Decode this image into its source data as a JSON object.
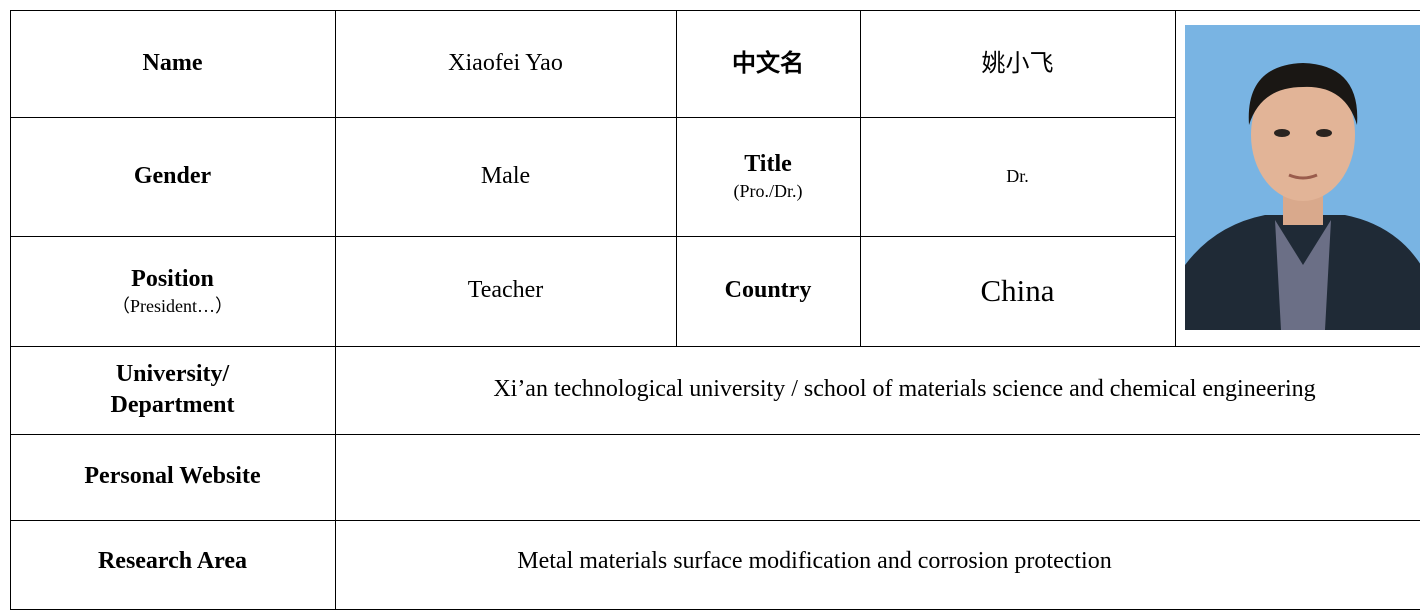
{
  "profile": {
    "name_label": "Name",
    "name": "Xiaofei Yao",
    "chinese_name_label": "中文名",
    "chinese_name": "姚小飞",
    "gender_label": "Gender",
    "gender": "Male",
    "title_label": "Title",
    "title_hint": "(Pro./Dr.)",
    "title": "Dr.",
    "position_label": "Position",
    "position_hint": "（President…）",
    "position": "Teacher",
    "country_label": "Country",
    "country": "China",
    "university_label": [
      "University/",
      "Department"
    ],
    "university": "Xi’an technological university / school of materials science and chemical engineering",
    "website_label": "Personal Website",
    "research_label": "Research Area",
    "research": "Metal materials surface modification and corrosion protection"
  }
}
